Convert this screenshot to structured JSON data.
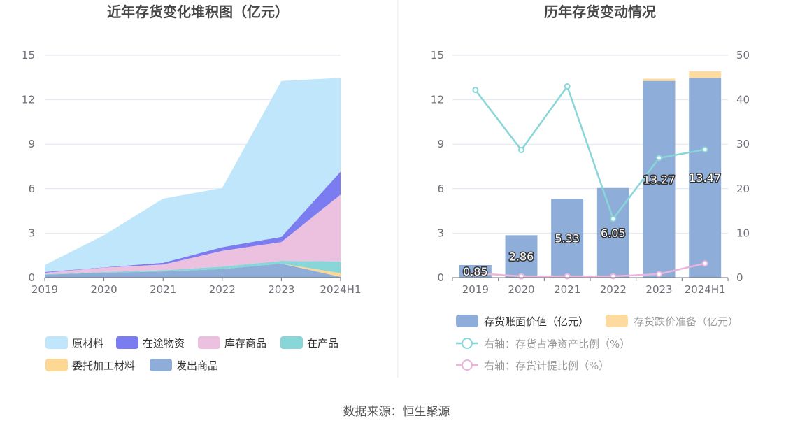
{
  "footer": "数据来源：恒生聚源",
  "chart_data": [
    {
      "type": "area",
      "stacked": true,
      "title": "近年存货变化堆积图（亿元）",
      "categories": [
        "2019",
        "2020",
        "2021",
        "2022",
        "2023",
        "2024H1"
      ],
      "ylim": [
        0,
        15
      ],
      "yticks": [
        0,
        3,
        6,
        9,
        12,
        15
      ],
      "grid": true,
      "legend_position": "bottom",
      "series": [
        {
          "name": "发出商品",
          "color": "#8fadd9",
          "values": [
            0.2,
            0.33,
            0.42,
            0.58,
            0.95,
            0.05
          ]
        },
        {
          "name": "委托加工材料",
          "color": "#fdd894",
          "values": [
            0.0,
            0.0,
            0.0,
            0.0,
            0.0,
            0.25
          ]
        },
        {
          "name": "在产品",
          "color": "#88d6d8",
          "values": [
            0.03,
            0.05,
            0.08,
            0.17,
            0.18,
            0.8
          ]
        },
        {
          "name": "库存商品",
          "color": "#ecc1e0",
          "values": [
            0.1,
            0.3,
            0.38,
            1.05,
            1.27,
            4.5
          ]
        },
        {
          "name": "在途物资",
          "color": "#7b7cf0",
          "values": [
            0.05,
            0.02,
            0.12,
            0.25,
            0.35,
            1.55
          ]
        },
        {
          "name": "原材料",
          "color": "#bfe6fa",
          "values": [
            0.47,
            2.16,
            4.33,
            4.0,
            10.52,
            6.32
          ]
        }
      ],
      "legend_order": [
        "原材料",
        "在途物资",
        "库存商品",
        "在产品",
        "委托加工材料",
        "发出商品"
      ]
    },
    {
      "type": "bar",
      "stacked": true,
      "title": "历年存货变动情况",
      "categories": [
        "2019",
        "2020",
        "2021",
        "2022",
        "2023",
        "2024H1"
      ],
      "ylim": [
        0,
        15
      ],
      "yticks": [
        0,
        3,
        6,
        9,
        12,
        15
      ],
      "y2lim": [
        0,
        50
      ],
      "y2ticks": [
        0,
        10,
        20,
        30,
        40,
        50
      ],
      "grid": true,
      "legend_position": "bottom",
      "series": [
        {
          "name": "存货账面价值（亿元）",
          "color": "#8fadd9",
          "kind": "bar",
          "values": [
            0.85,
            2.86,
            5.33,
            6.05,
            13.27,
            13.47
          ],
          "labels": [
            "0.85",
            "2.86",
            "5.33",
            "6.05",
            "13.27",
            "13.47"
          ]
        },
        {
          "name": "存货跌价准备（亿元）",
          "color": "#fddba0",
          "kind": "bar",
          "values": [
            0.0,
            0.0,
            0.0,
            0.0,
            0.15,
            0.45
          ]
        },
        {
          "name": "右轴：存货占净资产比例（%）",
          "color": "#88d6d8",
          "kind": "line",
          "axis": "right",
          "values": [
            42.2,
            28.7,
            43.0,
            13.2,
            26.9,
            28.8
          ]
        },
        {
          "name": "右轴：存货计提比例（%）",
          "color": "#e9b6dc",
          "kind": "line",
          "axis": "right",
          "values": [
            1.0,
            0.3,
            0.3,
            0.3,
            0.8,
            3.2
          ]
        }
      ]
    }
  ]
}
